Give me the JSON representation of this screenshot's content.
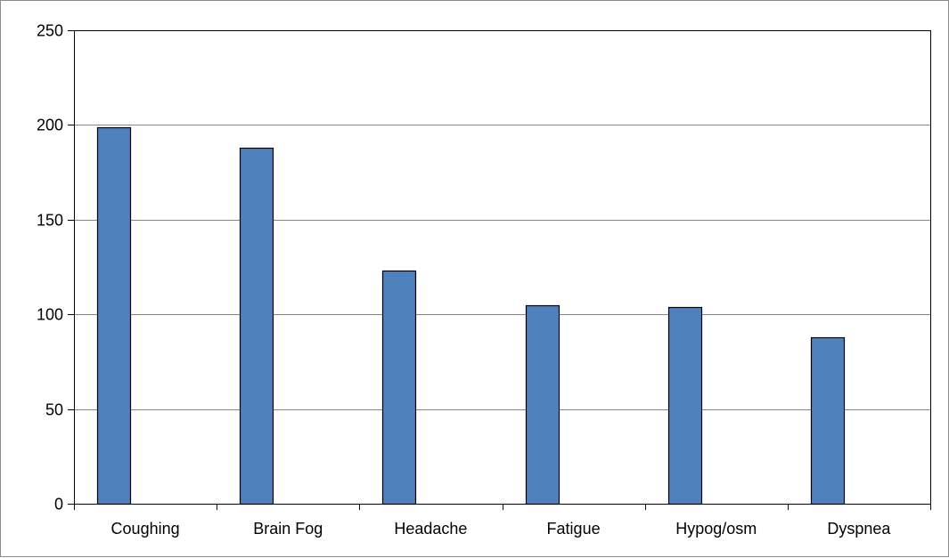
{
  "chart_data": {
    "type": "bar",
    "title": "",
    "xlabel": "",
    "ylabel": "",
    "categories": [
      "Coughing",
      "Brain Fog",
      "Headache",
      "Fatigue",
      "Hypog/osm",
      "Dyspnea"
    ],
    "values": [
      199,
      188,
      123,
      105,
      104,
      88
    ],
    "ylim": [
      0,
      250
    ],
    "yticks": [
      0,
      50,
      100,
      150,
      200,
      250
    ],
    "grid": true,
    "legend": "none",
    "colors": {
      "bar_fill": "#4f81bd",
      "bar_stroke": "#000000",
      "grid": "#868686",
      "axis": "#000000"
    }
  }
}
